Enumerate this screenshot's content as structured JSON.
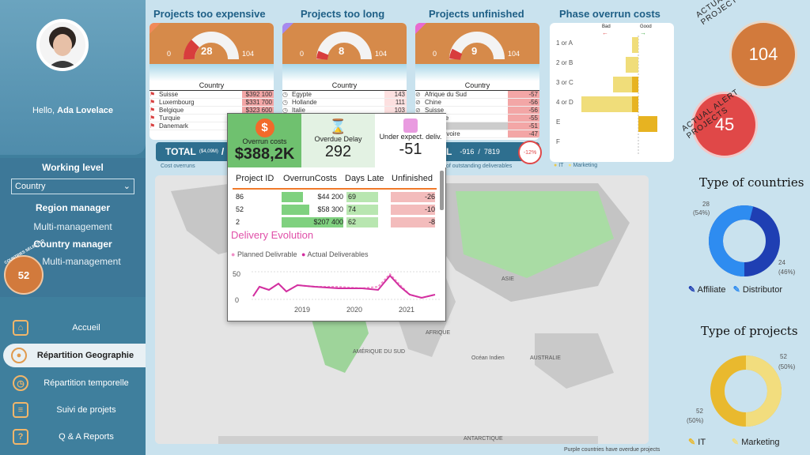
{
  "user": {
    "greeting": "Hello,",
    "name": "Ada Lovelace"
  },
  "working_level": {
    "title": "Working level",
    "select_value": "Country",
    "levels": [
      {
        "heading": "Region manager",
        "sub": "Multi-management"
      },
      {
        "heading": "Country manager",
        "sub": "Multi-management"
      }
    ],
    "badge_label": "COUNTRIES SELECTED",
    "badge_value": "52"
  },
  "nav": [
    {
      "label": "Accueil",
      "icon": "home-icon"
    },
    {
      "label": "Répartition Geographie",
      "icon": "globe-icon"
    },
    {
      "label": "Répartition temporelle",
      "icon": "clock-icon"
    },
    {
      "label": "Suivi de projets",
      "icon": "clipboard-icon"
    },
    {
      "label": "Q & A Reports",
      "icon": "question-icon"
    }
  ],
  "kpis": [
    {
      "title": "Projects too expensive",
      "gauge_min": "0",
      "gauge_value": "28",
      "gauge_max": "104",
      "column": "Country",
      "rows": [
        {
          "name": "Suisse",
          "value": "$392 100"
        },
        {
          "name": "Luxembourg",
          "value": "$331 700"
        },
        {
          "name": "Belgique",
          "value": "$323 600"
        },
        {
          "name": "Turquie",
          "value": "$315 700"
        },
        {
          "name": "Danemark",
          "value": "$315 700"
        }
      ],
      "total_label": "TOTAL",
      "total_small": "($4,09M)",
      "total_sep": "/",
      "footer": "Cost overruns"
    },
    {
      "title": "Projects too long",
      "gauge_min": "0",
      "gauge_value": "8",
      "gauge_max": "104",
      "column": "Country",
      "rows": [
        {
          "name": "Egypte",
          "value": "143"
        },
        {
          "name": "Hollande",
          "value": "111"
        },
        {
          "name": "Italie",
          "value": "103"
        }
      ]
    },
    {
      "title": "Projects unfinished",
      "gauge_min": "0",
      "gauge_value": "9",
      "gauge_max": "104",
      "column": "Country",
      "rows": [
        {
          "name": "Afrique du Sud",
          "value": "-57"
        },
        {
          "name": "Chine",
          "value": "-56"
        },
        {
          "name": "Suisse",
          "value": "-56"
        },
        {
          "name": "Norvege",
          "value": "-55"
        },
        {
          "name": "France",
          "value": "-51"
        },
        {
          "name": "Cote d'Ivoire",
          "value": "-47"
        }
      ],
      "total_label": "L",
      "total_a": "-916",
      "total_sep": "/",
      "total_b": "7819",
      "total_pct": "-12%",
      "footer": "of outstanding deliverables"
    }
  ],
  "phase": {
    "title": "Phase overrun costs",
    "bad": "Bad",
    "good": "Good",
    "legend": [
      "IT",
      "Marketing"
    ]
  },
  "chart_data": {
    "type": "bar",
    "title": "Phase overrun costs",
    "categories": [
      "1 or A",
      "2 or B",
      "3 or C",
      "4 or D",
      "E",
      "F"
    ],
    "series": [
      {
        "name": "IT",
        "values": [
          0,
          0,
          -1,
          -1,
          3,
          0
        ]
      },
      {
        "name": "Marketing",
        "values": [
          -1,
          -2,
          -3,
          -8,
          0,
          0
        ]
      }
    ]
  },
  "tooltip": {
    "cols": [
      {
        "label": "Overrun costs",
        "value": "$388,2K"
      },
      {
        "label": "Overdue Delay",
        "value": "292"
      },
      {
        "label": "Under expect. deliv.",
        "value": "-51"
      }
    ],
    "headers": [
      "Project ID",
      "OverrunCosts",
      "Days Late",
      "Unfinished"
    ],
    "rows": [
      {
        "id": "86",
        "cost": "$44 200",
        "days": "69",
        "unf": "-26"
      },
      {
        "id": "52",
        "cost": "$58 300",
        "days": "74",
        "unf": "-10"
      },
      {
        "id": "2",
        "cost": "$207 400",
        "days": "62",
        "unf": "-8"
      }
    ],
    "evolution_title": "Delivery Evolution",
    "legend": [
      "Planned Delivrable",
      "Actual Deliverables"
    ],
    "y_ticks": [
      "50",
      "0"
    ],
    "x_ticks": [
      "2019",
      "2020",
      "2021"
    ]
  },
  "map": {
    "labels": [
      "ASIE",
      "AFRIQUE",
      "AMÉRIQUE DU SUD",
      "Océan Indien",
      "AUSTRALIE",
      "ANTARCTIQUE"
    ],
    "footnote": "Purple countries have overdue projects"
  },
  "right": {
    "filtered_label": "ACTUAL FILTERED PROJECTS",
    "filtered_value": "104",
    "alert_label": "ACTUAL ALERT PROJECTS",
    "alert_value": "45",
    "countries_title": "Type of countries",
    "countries_a_val": "28",
    "countries_a_pct": "(54%)",
    "countries_b_val": "24",
    "countries_b_pct": "(46%)",
    "countries_legend": [
      "Affiliate",
      "Distributor"
    ],
    "projects_title": "Type of projects",
    "projects_a_val": "52",
    "projects_a_pct": "(50%)",
    "projects_b_val": "52",
    "projects_b_pct": "(50%)",
    "projects_legend": [
      "IT",
      "Marketing"
    ]
  },
  "colors": {
    "accent": "#3f7f9d",
    "orange": "#d68a4a",
    "red": "#e04848",
    "pink": "#e04fa8",
    "green": "#72c87a"
  }
}
